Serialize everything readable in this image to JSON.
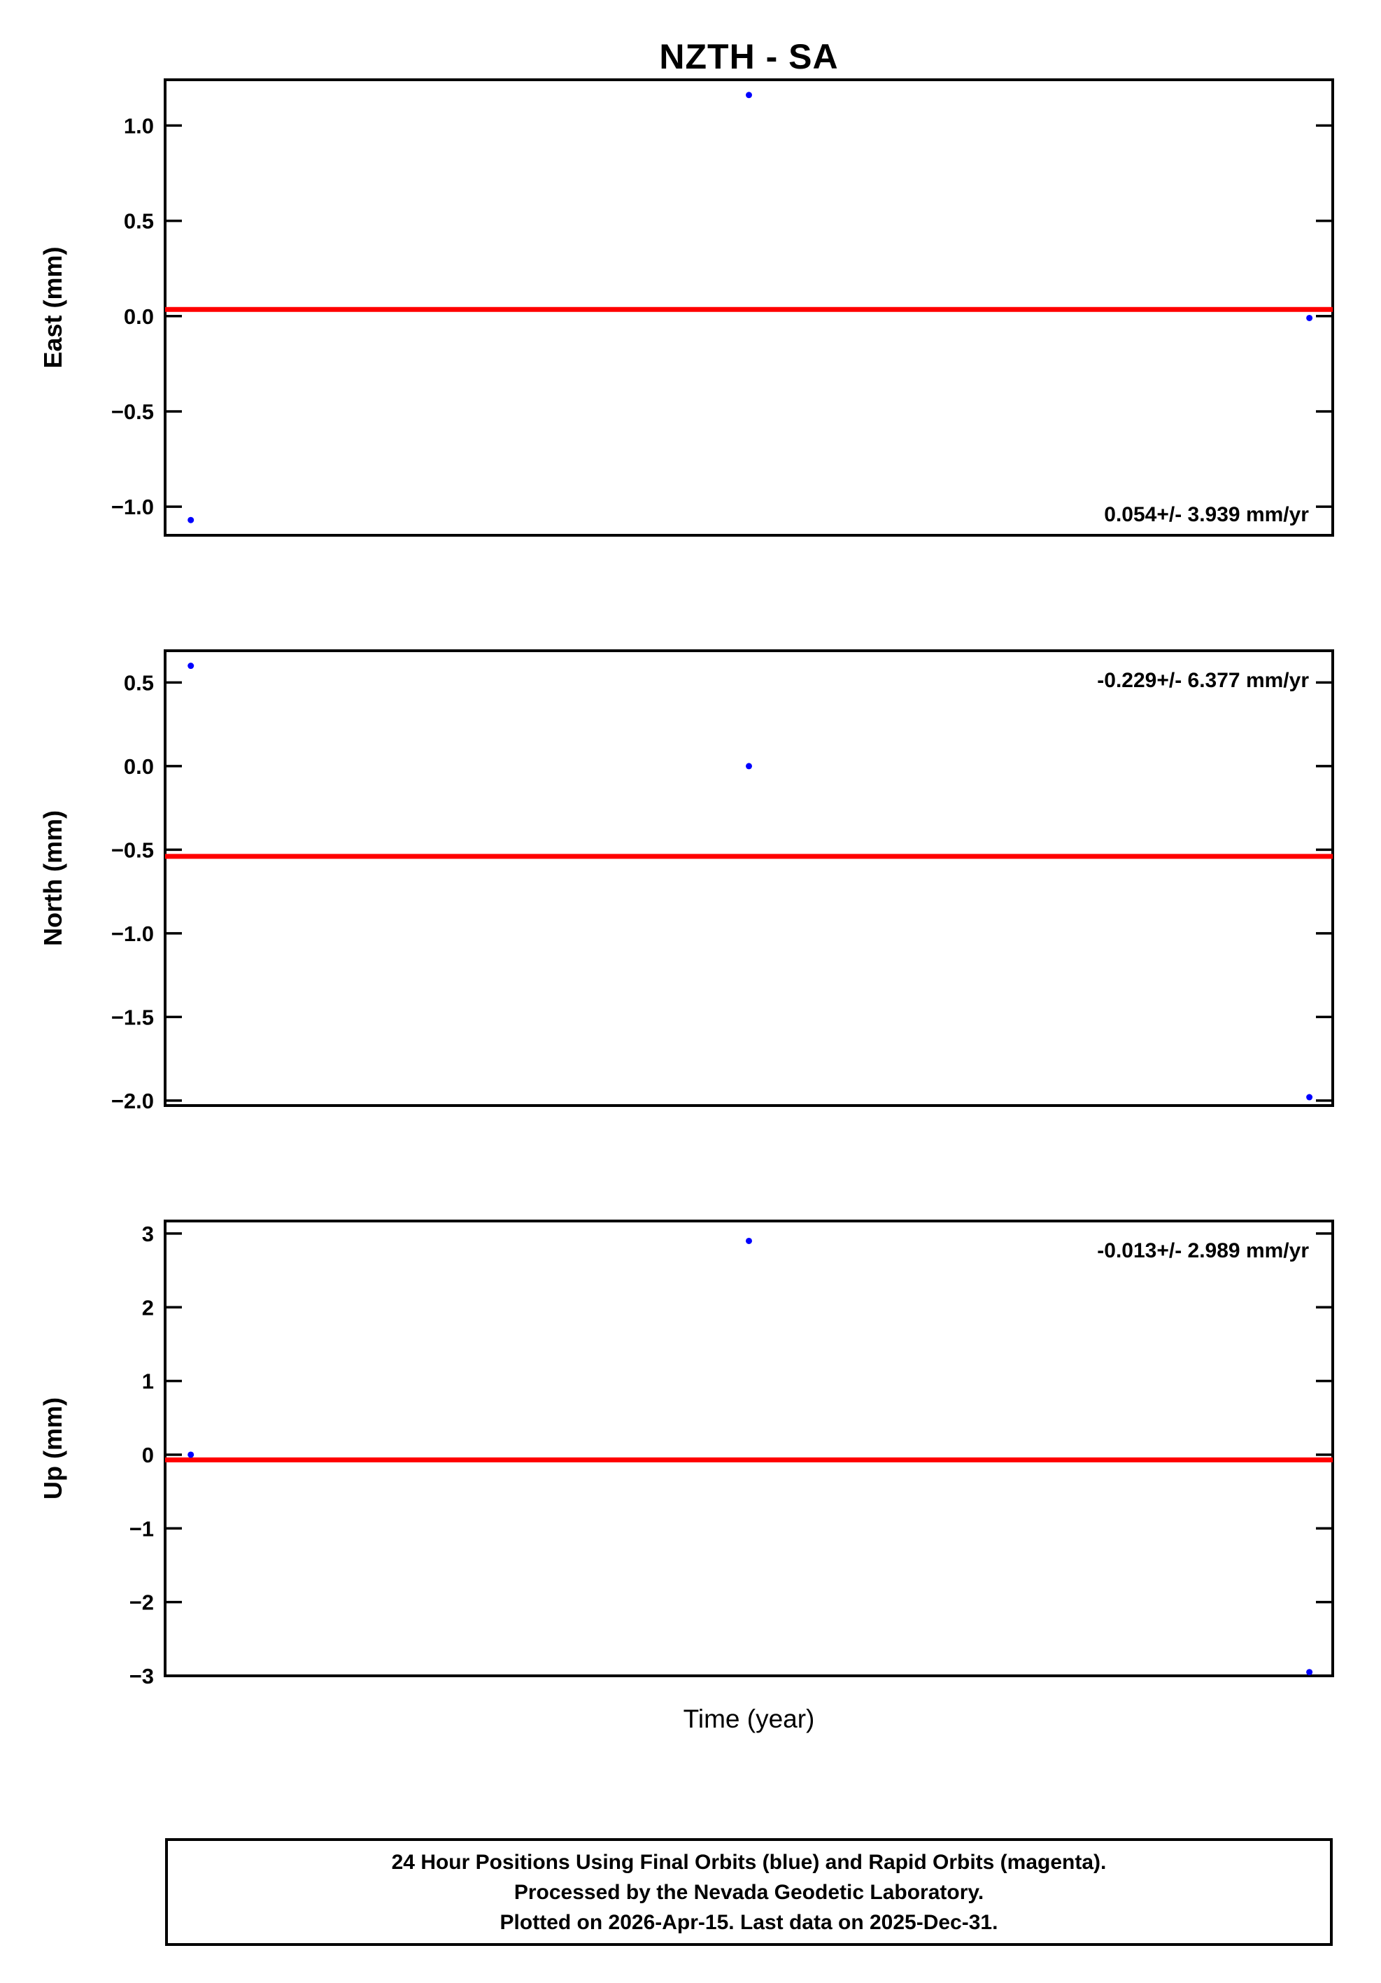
{
  "title": "NZTH - SA",
  "xlabel": "Time (year)",
  "footer": {
    "line1": "24 Hour Positions Using Final Orbits (blue) and Rapid Orbits (magenta).",
    "line2": "Processed by the Nevada Geodetic Laboratory.",
    "line3": "Plotted on 2026-Apr-15. Last data on 2025-Dec-31."
  },
  "colors": {
    "point": "#0000ff",
    "trend": "#ff0000",
    "axis": "#000000",
    "background": "#ffffff"
  },
  "chart_data": [
    {
      "id": "east",
      "type": "scatter",
      "ylabel": "East (mm)",
      "ylim": [
        -1.15,
        1.24
      ],
      "yticks": [
        1.0,
        0.5,
        0.0,
        -0.5,
        -1.0
      ],
      "ytick_labels": [
        "1.0",
        "0.5",
        "0.0",
        "−0.5",
        "−1.0"
      ],
      "trend_value": 0.035,
      "annotation": "0.054+/- 3.939 mm/yr",
      "annotation_pos": "bottom-right",
      "points": [
        {
          "x": 0.022,
          "y": -1.07
        },
        {
          "x": 0.5,
          "y": 1.16
        },
        {
          "x": 0.98,
          "y": -0.01
        }
      ]
    },
    {
      "id": "north",
      "type": "scatter",
      "ylabel": "North (mm)",
      "ylim": [
        -2.03,
        0.69
      ],
      "yticks": [
        0.5,
        0.0,
        -0.5,
        -1.0,
        -1.5,
        -2.0
      ],
      "ytick_labels": [
        "0.5",
        "0.0",
        "−0.5",
        "−1.0",
        "−1.5",
        "−2.0"
      ],
      "trend_value": -0.54,
      "annotation": "-0.229+/- 6.377 mm/yr",
      "annotation_pos": "top-right",
      "points": [
        {
          "x": 0.022,
          "y": 0.6
        },
        {
          "x": 0.5,
          "y": 0.0
        },
        {
          "x": 0.98,
          "y": -1.98
        }
      ]
    },
    {
      "id": "up",
      "type": "scatter",
      "ylabel": "Up (mm)",
      "ylim": [
        -3.0,
        3.17
      ],
      "yticks": [
        3,
        2,
        1,
        0,
        -1,
        -2,
        -3
      ],
      "ytick_labels": [
        "3",
        "2",
        "1",
        "0",
        "−1",
        "−2",
        "−3"
      ],
      "trend_value": -0.07,
      "annotation": "-0.013+/- 2.989 mm/yr",
      "annotation_pos": "top-right",
      "points": [
        {
          "x": 0.022,
          "y": 0.0
        },
        {
          "x": 0.5,
          "y": 2.9
        },
        {
          "x": 0.98,
          "y": -2.95
        }
      ]
    }
  ]
}
